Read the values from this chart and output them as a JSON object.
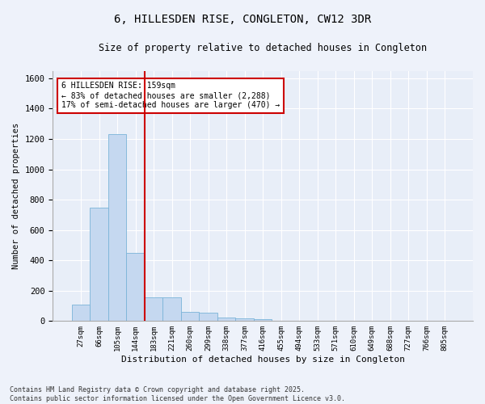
{
  "title": "6, HILLESDEN RISE, CONGLETON, CW12 3DR",
  "subtitle": "Size of property relative to detached houses in Congleton",
  "xlabel": "Distribution of detached houses by size in Congleton",
  "ylabel": "Number of detached properties",
  "categories": [
    "27sqm",
    "66sqm",
    "105sqm",
    "144sqm",
    "183sqm",
    "221sqm",
    "260sqm",
    "299sqm",
    "338sqm",
    "377sqm",
    "416sqm",
    "455sqm",
    "494sqm",
    "533sqm",
    "571sqm",
    "610sqm",
    "649sqm",
    "688sqm",
    "727sqm",
    "766sqm",
    "805sqm"
  ],
  "values": [
    110,
    750,
    1230,
    450,
    155,
    155,
    60,
    55,
    25,
    20,
    10,
    0,
    0,
    0,
    0,
    0,
    0,
    0,
    0,
    0,
    0
  ],
  "bar_color": "#c5d8f0",
  "bar_edge_color": "#7ab4d8",
  "background_color": "#e8eef8",
  "grid_color": "#ffffff",
  "vline_color": "#cc0000",
  "annotation_text": "6 HILLESDEN RISE: 159sqm\n← 83% of detached houses are smaller (2,288)\n17% of semi-detached houses are larger (470) →",
  "annotation_box_color": "#ffffff",
  "annotation_box_edge": "#cc0000",
  "ylim": [
    0,
    1650
  ],
  "yticks": [
    0,
    200,
    400,
    600,
    800,
    1000,
    1200,
    1400,
    1600
  ],
  "footer": "Contains HM Land Registry data © Crown copyright and database right 2025.\nContains public sector information licensed under the Open Government Licence v3.0.",
  "figsize": [
    6.0,
    5.0
  ],
  "dpi": 100
}
